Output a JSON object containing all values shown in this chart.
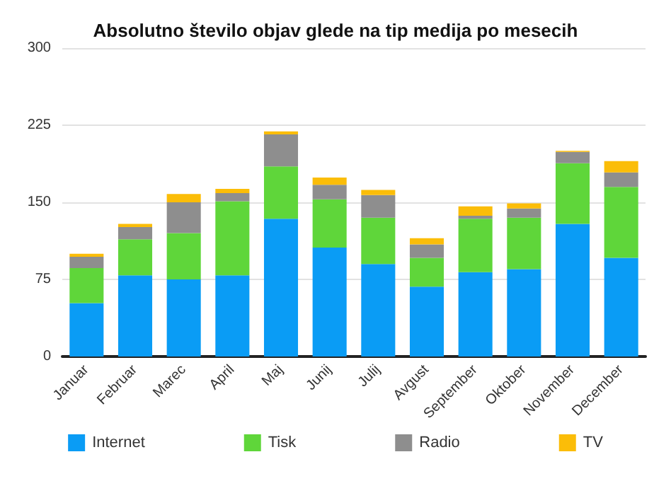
{
  "chart_data": {
    "type": "bar",
    "title": "Absolutno število objav glede na tip medija po mesecih",
    "categories": [
      "Januar",
      "Februar",
      "Marec",
      "April",
      "Maj",
      "Junij",
      "Julij",
      "Avgust",
      "September",
      "Oktober",
      "November",
      "December"
    ],
    "stacked": true,
    "ylim": [
      0,
      300
    ],
    "yticks": [
      0,
      75,
      150,
      225,
      300
    ],
    "grid": "y",
    "legend": "bottom",
    "series": [
      {
        "name": "Internet",
        "color": "#0a9cf5",
        "values": [
          52,
          79,
          75,
          79,
          134,
          106,
          90,
          68,
          82,
          85,
          129,
          96
        ]
      },
      {
        "name": "Tisk",
        "color": "#5fd63a",
        "values": [
          34,
          35,
          45,
          72,
          51,
          47,
          45,
          28,
          52,
          50,
          59,
          69
        ]
      },
      {
        "name": "Radio",
        "color": "#8e8e8e",
        "values": [
          11,
          12,
          30,
          8,
          31,
          14,
          22,
          13,
          3,
          9,
          11,
          14
        ]
      },
      {
        "name": "TV",
        "color": "#fbbd08",
        "values": [
          3,
          3,
          8,
          4,
          3,
          7,
          5,
          6,
          9,
          5,
          1,
          11
        ]
      }
    ]
  }
}
